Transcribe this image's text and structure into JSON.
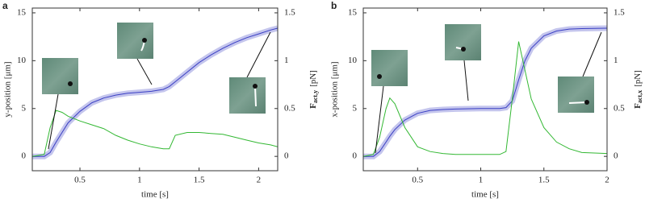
{
  "chart_data": [
    {
      "type": "line",
      "panel_label": "a",
      "xlabel": "time [s]",
      "ylabel": "y-position [μm]",
      "y2label": {
        "symbol": "F",
        "subscript": "act,y",
        "unit": "[pN]"
      },
      "x": [
        0.1,
        0.2,
        0.25,
        0.3,
        0.35,
        0.4,
        0.5,
        0.6,
        0.7,
        0.8,
        0.9,
        1.0,
        1.1,
        1.2,
        1.25,
        1.3,
        1.4,
        1.5,
        1.6,
        1.7,
        1.8,
        1.9,
        2.0,
        2.1,
        2.16
      ],
      "xlim": [
        0.1,
        2.16
      ],
      "xticks": [
        0.5,
        1,
        1.5,
        2
      ],
      "ylim": [
        -1.5,
        15.5
      ],
      "yticks": [
        0,
        5,
        10,
        15
      ],
      "y2lim": [
        -0.15,
        1.55
      ],
      "y2ticks": [
        0,
        0.5,
        1,
        1.5
      ],
      "series": [
        {
          "color": "#3a3fc4",
          "values": [
            0,
            0,
            0.4,
            1.5,
            2.5,
            3.5,
            4.7,
            5.6,
            6.1,
            6.4,
            6.6,
            6.7,
            6.8,
            7.0,
            7.3,
            7.8,
            8.8,
            9.8,
            10.6,
            11.3,
            11.9,
            12.4,
            12.8,
            13.2,
            13.4
          ]
        },
        {
          "color": "#33b833",
          "axis": "y2",
          "values": [
            0,
            0.02,
            0.3,
            0.48,
            0.46,
            0.42,
            0.37,
            0.33,
            0.29,
            0.22,
            0.17,
            0.13,
            0.1,
            0.08,
            0.08,
            0.22,
            0.25,
            0.25,
            0.24,
            0.23,
            0.2,
            0.17,
            0.14,
            0.12,
            0.1
          ]
        }
      ]
    },
    {
      "type": "line",
      "panel_label": "b",
      "xlabel": "time [s]",
      "ylabel": "x-position [μm]",
      "y2label": {
        "symbol": "F",
        "subscript": "act,x",
        "unit": "[pN]"
      },
      "x": [
        0.07,
        0.15,
        0.2,
        0.25,
        0.28,
        0.32,
        0.4,
        0.5,
        0.6,
        0.7,
        0.8,
        1.0,
        1.15,
        1.2,
        1.25,
        1.3,
        1.35,
        1.4,
        1.5,
        1.6,
        1.7,
        1.8,
        2.0
      ],
      "xlim": [
        0.07,
        2
      ],
      "xticks": [
        0.5,
        1,
        1.5,
        2
      ],
      "ylim": [
        -1.5,
        15.5
      ],
      "yticks": [
        0,
        5,
        10,
        15
      ],
      "y2lim": [
        -0.15,
        1.55
      ],
      "y2ticks": [
        0,
        0.5,
        1,
        1.5
      ],
      "series": [
        {
          "color": "#3a3fc4",
          "values": [
            0,
            0,
            0.5,
            1.5,
            2.1,
            2.8,
            3.8,
            4.5,
            4.8,
            4.9,
            4.95,
            5.0,
            5.0,
            5.1,
            5.8,
            8.0,
            10.0,
            11.3,
            12.6,
            13.1,
            13.3,
            13.35,
            13.4
          ]
        },
        {
          "color": "#33b833",
          "axis": "y2",
          "values": [
            0,
            0.02,
            0.2,
            0.5,
            0.61,
            0.55,
            0.3,
            0.1,
            0.05,
            0.03,
            0.02,
            0.02,
            0.02,
            0.05,
            0.6,
            1.2,
            0.9,
            0.6,
            0.3,
            0.15,
            0.08,
            0.04,
            0.03
          ]
        }
      ]
    }
  ]
}
